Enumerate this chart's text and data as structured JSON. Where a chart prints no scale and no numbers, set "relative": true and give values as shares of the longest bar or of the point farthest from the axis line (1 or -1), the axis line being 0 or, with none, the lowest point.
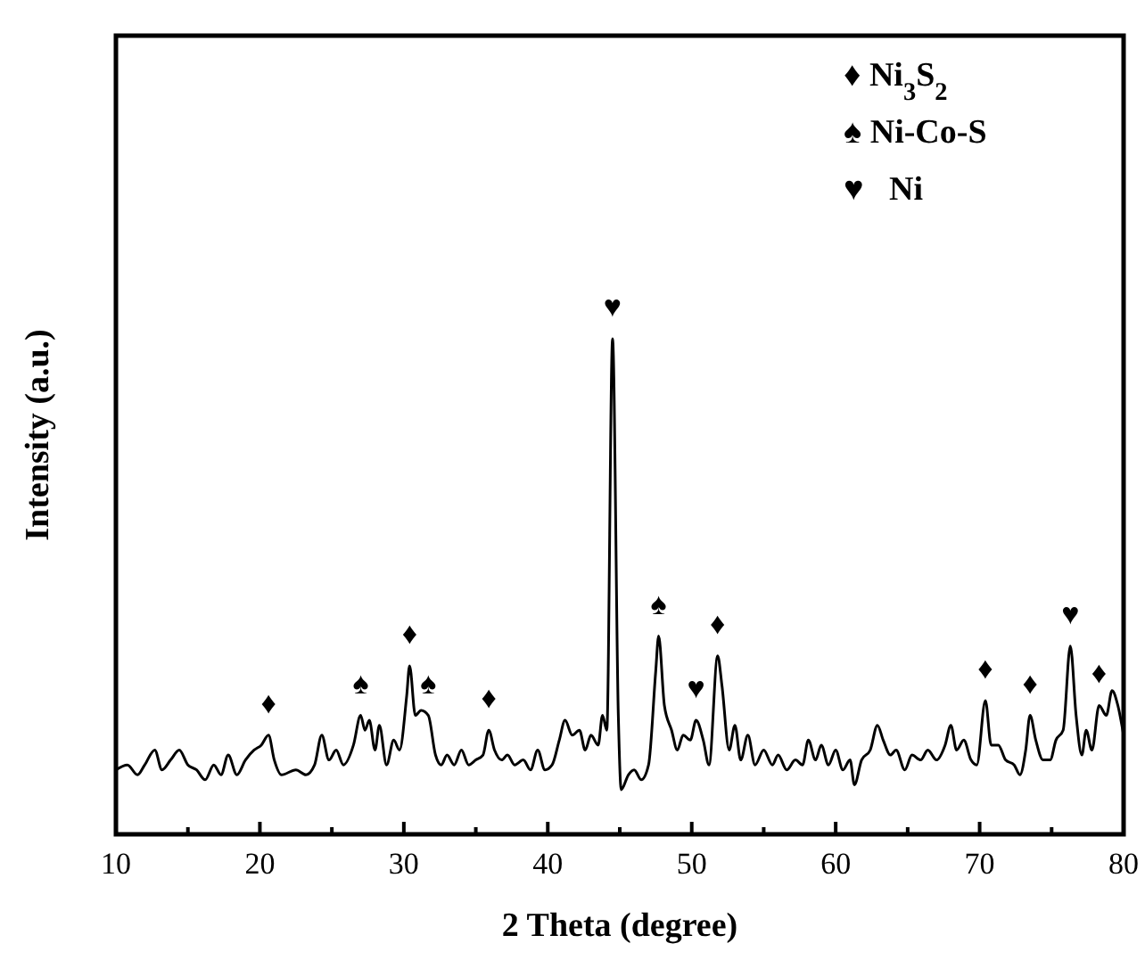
{
  "chart_data": {
    "type": "line",
    "relative": true,
    "xlabel": "2 Theta (degree)",
    "ylabel": "Intensity (a.u.)",
    "xlim": [
      10,
      80
    ],
    "xticks": [
      10,
      {
        "value": 15,
        "label": null
      },
      20,
      {
        "value": 25,
        "label": null
      },
      30,
      {
        "value": 35,
        "label": null
      },
      40,
      {
        "value": 45,
        "label": null
      },
      50,
      {
        "value": 55,
        "label": null
      },
      60,
      {
        "value": 65,
        "label": null
      },
      70,
      {
        "value": 75,
        "label": null
      },
      80
    ],
    "series": [
      {
        "color": "#000000",
        "x": [
          10.0,
          10.8,
          11.5,
          12.0,
          12.7,
          13.2,
          13.8,
          14.4,
          15.0,
          15.6,
          16.2,
          16.8,
          17.3,
          17.8,
          18.4,
          19.0,
          19.6,
          20.1,
          20.6,
          21.0,
          21.5,
          22.5,
          23.2,
          23.8,
          24.3,
          24.8,
          25.3,
          25.8,
          26.5,
          27.0,
          27.3,
          27.6,
          28.0,
          28.3,
          28.8,
          29.3,
          29.7,
          30.2,
          30.4,
          30.8,
          31.2,
          31.7,
          32.2,
          32.6,
          33.0,
          33.5,
          34.0,
          34.5,
          35.0,
          35.5,
          35.9,
          36.3,
          36.8,
          37.2,
          37.7,
          38.3,
          38.8,
          39.3,
          39.8,
          40.3,
          40.8,
          41.2,
          41.7,
          42.2,
          42.6,
          43.0,
          43.5,
          43.8,
          44.1,
          44.5,
          44.9,
          45.1,
          45.6,
          46.0,
          46.5,
          47.0,
          47.5,
          47.7,
          48.1,
          48.6,
          49.0,
          49.4,
          49.9,
          50.3,
          50.8,
          51.2,
          51.8,
          52.1,
          52.6,
          53.0,
          53.4,
          53.9,
          54.4,
          55.0,
          55.6,
          56.0,
          56.6,
          57.2,
          57.7,
          58.1,
          58.6,
          59.0,
          59.5,
          60.0,
          60.5,
          61.0,
          61.3,
          61.8,
          62.4,
          62.9,
          63.3,
          63.8,
          64.2,
          64.8,
          65.3,
          65.9,
          66.4,
          67.0,
          67.6,
          68.0,
          68.4,
          68.9,
          69.4,
          69.8,
          70.4,
          70.8,
          71.3,
          71.8,
          72.4,
          72.8,
          73.2,
          73.5,
          73.9,
          74.4,
          74.9,
          75.3,
          75.8,
          76.3,
          76.7,
          77.1,
          77.4,
          77.8,
          78.3,
          78.8,
          79.2,
          79.6,
          80.0
        ],
        "values": [
          0.13,
          0.14,
          0.12,
          0.14,
          0.17,
          0.13,
          0.15,
          0.17,
          0.14,
          0.13,
          0.11,
          0.14,
          0.12,
          0.16,
          0.12,
          0.15,
          0.17,
          0.18,
          0.2,
          0.15,
          0.12,
          0.13,
          0.12,
          0.14,
          0.2,
          0.15,
          0.17,
          0.14,
          0.18,
          0.24,
          0.21,
          0.23,
          0.17,
          0.22,
          0.14,
          0.19,
          0.17,
          0.28,
          0.34,
          0.24,
          0.25,
          0.24,
          0.16,
          0.14,
          0.16,
          0.14,
          0.17,
          0.14,
          0.15,
          0.16,
          0.21,
          0.17,
          0.15,
          0.16,
          0.14,
          0.15,
          0.13,
          0.17,
          0.13,
          0.14,
          0.19,
          0.23,
          0.2,
          0.21,
          0.17,
          0.2,
          0.18,
          0.24,
          0.21,
          1,
          0.24,
          0.09,
          0.12,
          0.13,
          0.11,
          0.14,
          0.33,
          0.4,
          0.26,
          0.21,
          0.17,
          0.2,
          0.19,
          0.23,
          0.19,
          0.14,
          0.36,
          0.3,
          0.17,
          0.22,
          0.15,
          0.2,
          0.14,
          0.17,
          0.14,
          0.16,
          0.13,
          0.15,
          0.14,
          0.19,
          0.15,
          0.18,
          0.14,
          0.17,
          0.13,
          0.15,
          0.1,
          0.15,
          0.17,
          0.22,
          0.19,
          0.16,
          0.17,
          0.13,
          0.16,
          0.15,
          0.17,
          0.15,
          0.18,
          0.22,
          0.17,
          0.19,
          0.15,
          0.14,
          0.27,
          0.18,
          0.18,
          0.15,
          0.14,
          0.12,
          0.17,
          0.24,
          0.19,
          0.15,
          0.15,
          0.19,
          0.21,
          0.38,
          0.24,
          0.16,
          0.21,
          0.17,
          0.26,
          0.24,
          0.29,
          0.26,
          0.2
        ]
      }
    ],
    "annotations": [
      {
        "text": "♦",
        "x": 20.6,
        "y": 0.2
      },
      {
        "text": "♠",
        "x": 27.0,
        "y": 0.24
      },
      {
        "text": "♦",
        "x": 30.4,
        "y": 0.34
      },
      {
        "text": "♠",
        "x": 31.7,
        "y": 0.24
      },
      {
        "text": "♦",
        "x": 35.9,
        "y": 0.21
      },
      {
        "text": "♥",
        "x": 44.5,
        "y": 1
      },
      {
        "text": "♠",
        "x": 47.7,
        "y": 0.4
      },
      {
        "text": "♥",
        "x": 50.3,
        "y": 0.23
      },
      {
        "text": "♦",
        "x": 51.8,
        "y": 0.36
      },
      {
        "text": "♦",
        "x": 70.4,
        "y": 0.27
      },
      {
        "text": "♦",
        "x": 73.5,
        "y": 0.24
      },
      {
        "text": "♥",
        "x": 76.3,
        "y": 0.38
      },
      {
        "text": "♦",
        "x": 78.3,
        "y": 0.26
      },
      "♦ Ni$_{3}$S$_{2}$",
      "♠ Ni-Co-S",
      "♥   Ni"
    ]
  }
}
